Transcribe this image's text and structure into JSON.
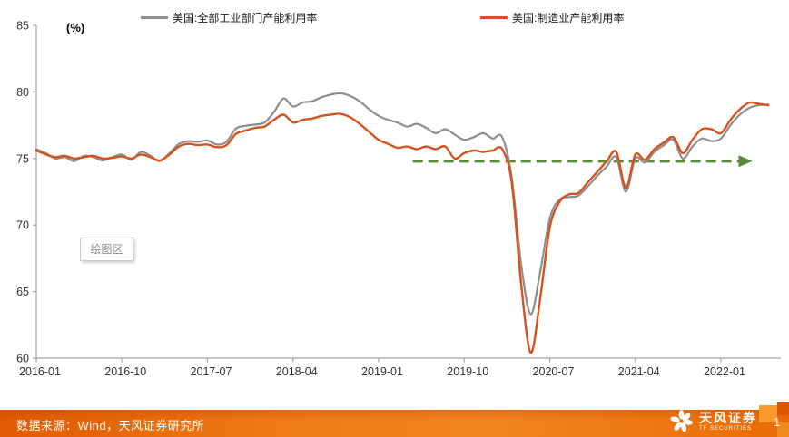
{
  "legend": [
    {
      "label": "美国:全部工业部门产能利用率",
      "color": "#8e8e8e"
    },
    {
      "label": "美国:制造业产能利用率",
      "color": "#d4531f"
    }
  ],
  "unit_label": "(%)",
  "plot_area_label": "绘图区",
  "footer": {
    "source_text": "数据来源：Wind，天风证券研究所",
    "logo_cn": "天风证券",
    "logo_en": "TF SECURITIES",
    "page_number": "1"
  },
  "colors": {
    "axis": "#a3a3a3",
    "tick_label": "#333333",
    "arrow_green": "#5b8a3a",
    "footer_orange": "#ef7a16"
  },
  "chart_data": {
    "type": "line",
    "title": "",
    "ylabel": "(%)",
    "ylim": [
      60,
      85
    ],
    "grid": false,
    "legend_position": "top",
    "x_start": "2016-01",
    "x_interval": "monthly",
    "x_ticks": [
      "2016-01",
      "2016-10",
      "2017-07",
      "2018-04",
      "2019-01",
      "2019-10",
      "2020-07",
      "2021-04",
      "2022-01"
    ],
    "x_tick_interval_months": 9,
    "y_ticks": [
      85,
      80,
      75,
      70,
      65,
      60
    ],
    "series": [
      {
        "name": "美国:全部工业部门产能利用率",
        "color": "#8e8e8e",
        "values": [
          75.7,
          75.4,
          75.0,
          75.1,
          74.8,
          75.2,
          75.1,
          74.85,
          75.1,
          75.3,
          74.9,
          75.5,
          75.2,
          74.8,
          75.4,
          76.1,
          76.3,
          76.25,
          76.35,
          76.05,
          76.25,
          77.25,
          77.45,
          77.55,
          77.7,
          78.5,
          79.5,
          78.9,
          79.2,
          79.3,
          79.6,
          79.8,
          79.9,
          79.7,
          79.3,
          78.7,
          78.2,
          77.9,
          77.7,
          77.4,
          77.6,
          77.3,
          76.9,
          77.2,
          76.8,
          76.4,
          76.6,
          76.9,
          76.5,
          76.6,
          73.6,
          67.0,
          63.3,
          66.5,
          70.5,
          71.9,
          72.1,
          72.2,
          72.9,
          73.7,
          74.4,
          75.1,
          72.5,
          75.0,
          74.7,
          75.5,
          76.0,
          76.4,
          75.0,
          75.9,
          76.5,
          76.3,
          76.5,
          77.5,
          78.3,
          78.8,
          79.0,
          79.05
        ]
      },
      {
        "name": "美国:制造业产能利用率",
        "color": "#d4531f",
        "values": [
          75.6,
          75.3,
          75.1,
          75.2,
          75.0,
          75.1,
          75.2,
          75.0,
          75.05,
          75.15,
          75.0,
          75.3,
          75.1,
          74.85,
          75.3,
          75.9,
          76.1,
          76.0,
          76.05,
          75.85,
          76.0,
          76.85,
          77.1,
          77.3,
          77.4,
          77.9,
          78.3,
          77.7,
          77.9,
          78.0,
          78.2,
          78.3,
          78.35,
          78.1,
          77.6,
          77.0,
          76.4,
          76.1,
          75.8,
          75.9,
          75.7,
          75.9,
          75.7,
          75.9,
          75.0,
          75.4,
          75.6,
          75.5,
          75.6,
          75.7,
          73.2,
          65.5,
          60.4,
          64.5,
          69.8,
          71.7,
          72.3,
          72.4,
          73.2,
          74.0,
          74.8,
          75.5,
          72.8,
          75.3,
          74.9,
          75.7,
          76.2,
          76.6,
          75.4,
          76.4,
          77.2,
          77.2,
          76.9,
          77.9,
          78.7,
          79.2,
          79.1,
          79.0
        ]
      }
    ],
    "annotation_arrow": {
      "type": "dashed-horizontal-arrow",
      "value": 74.8,
      "start_month_index": 39.6,
      "end_month_index": 75.3,
      "color": "#5b8a3a"
    }
  }
}
